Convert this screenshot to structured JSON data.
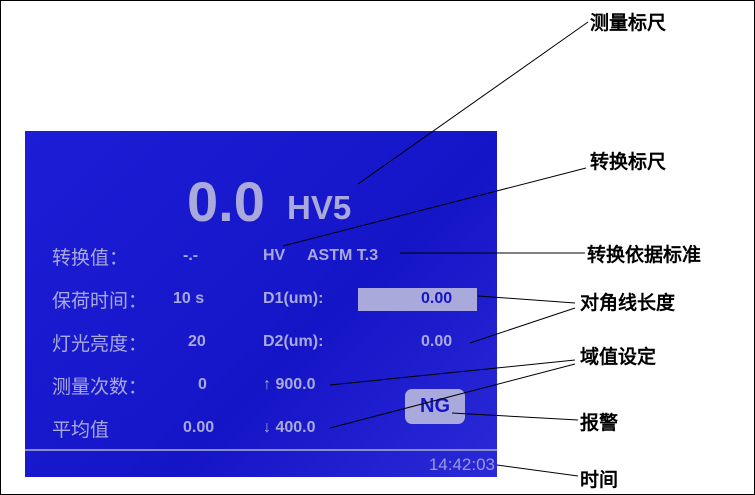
{
  "screen": {
    "reading": "0.0",
    "scale": "HV5",
    "rows": [
      {
        "label": "转换值：",
        "value": "-.-"
      },
      {
        "label": "保荷时间：",
        "value": "10 s"
      },
      {
        "label": "灯光亮度：",
        "value": "20"
      },
      {
        "label": "测量次数：",
        "value": "0"
      },
      {
        "label": "平均值",
        "value": "0.00"
      }
    ],
    "convert_scale": "HV",
    "convert_standard": "ASTM T.3",
    "d1_label": "D1(um):",
    "d1_value": "0.00",
    "d2_label": "D2(um):",
    "d2_value": "0.00",
    "upper_limit": "↑ 900.0",
    "lower_limit": "↓ 400.0",
    "alarm": "NG",
    "time": "14:42:03"
  },
  "callouts": {
    "measure_scale": "测量标尺",
    "convert_scale": "转换标尺",
    "convert_standard": "转换依据标准",
    "diagonal_length": "对角线长度",
    "threshold": "域值设定",
    "alarm": "报警",
    "time": "时间"
  },
  "colors": {
    "screen_bg": "#1a1bd2",
    "screen_text": "#a9a9dc",
    "callout_text": "#000000"
  }
}
